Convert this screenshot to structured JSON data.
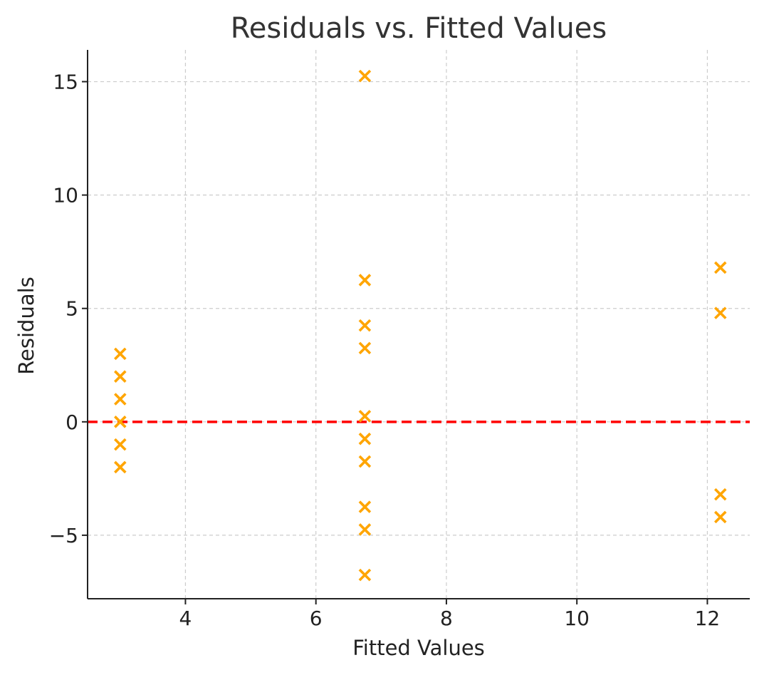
{
  "chart_data": {
    "type": "scatter",
    "title": "Residuals vs. Fitted Values",
    "xlabel": "Fitted Values",
    "ylabel": "Residuals",
    "xlim": [
      2.5,
      12.65
    ],
    "ylim": [
      -7.8,
      16.4
    ],
    "xticks": [
      4,
      6,
      8,
      10,
      12
    ],
    "yticks": [
      -5,
      0,
      5,
      10,
      15
    ],
    "xtick_labels": [
      "4",
      "6",
      "8",
      "10",
      "12"
    ],
    "ytick_labels": [
      "−5",
      "0",
      "5",
      "10",
      "15"
    ],
    "grid": true,
    "marker": "x",
    "marker_color": "#FFA500",
    "reference_line": {
      "y": 0,
      "style": "dashed",
      "color": "#FF0000"
    },
    "points": [
      {
        "x": 3.0,
        "y": 3.0
      },
      {
        "x": 3.0,
        "y": 2.0
      },
      {
        "x": 3.0,
        "y": 1.0
      },
      {
        "x": 3.0,
        "y": 0.0
      },
      {
        "x": 3.0,
        "y": -1.0
      },
      {
        "x": 3.0,
        "y": -2.0
      },
      {
        "x": 6.75,
        "y": 15.25
      },
      {
        "x": 6.75,
        "y": 6.25
      },
      {
        "x": 6.75,
        "y": 4.25
      },
      {
        "x": 6.75,
        "y": 3.25
      },
      {
        "x": 6.75,
        "y": 0.25
      },
      {
        "x": 6.75,
        "y": -0.75
      },
      {
        "x": 6.75,
        "y": -1.75
      },
      {
        "x": 6.75,
        "y": -3.75
      },
      {
        "x": 6.75,
        "y": -4.75
      },
      {
        "x": 6.75,
        "y": -6.75
      },
      {
        "x": 12.2,
        "y": 6.8
      },
      {
        "x": 12.2,
        "y": 4.8
      },
      {
        "x": 12.2,
        "y": -3.2
      },
      {
        "x": 12.2,
        "y": -4.2
      }
    ]
  }
}
